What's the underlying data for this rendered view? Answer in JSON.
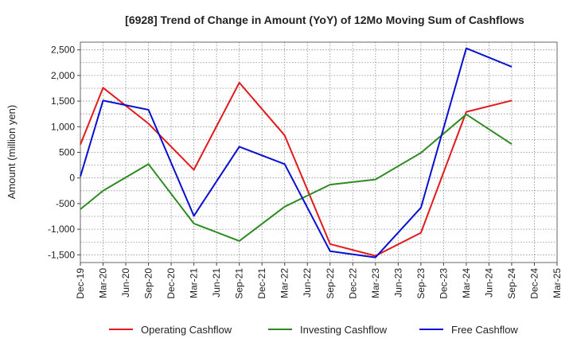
{
  "chart_data": {
    "type": "line",
    "title": "[6928]  Trend of Change in Amount (YoY) of 12Mo Moving Sum of Cashflows",
    "ylabel": "Amount (million yen)",
    "xlabel": "",
    "ylim": [
      -1650,
      2650
    ],
    "yticks": [
      -1500,
      -1000,
      -500,
      0,
      500,
      1000,
      1500,
      2000,
      2500
    ],
    "ytick_labels": [
      "-1,500",
      "-1,000",
      "-500",
      "0",
      "500",
      "1,000",
      "1,500",
      "2,000",
      "2,500"
    ],
    "categories": [
      "Dec-19",
      "Mar-20",
      "Jun-20",
      "Sep-20",
      "Dec-20",
      "Mar-21",
      "Jun-21",
      "Sep-21",
      "Dec-21",
      "Mar-22",
      "Jun-22",
      "Sep-22",
      "Dec-22",
      "Mar-23",
      "Jun-23",
      "Sep-23",
      "Dec-23",
      "Mar-24",
      "Jun-24",
      "Sep-24",
      "Dec-24",
      "Mar-25"
    ],
    "grid": true,
    "legend_position": "bottom",
    "series": [
      {
        "name": "Operating Cashflow",
        "color": "#e31a1c",
        "points": [
          [
            0,
            650
          ],
          [
            1,
            1760
          ],
          [
            3,
            1060
          ],
          [
            5,
            160
          ],
          [
            7,
            1860
          ],
          [
            9,
            830
          ],
          [
            11,
            -1290
          ],
          [
            13,
            -1520
          ],
          [
            15,
            -1070
          ],
          [
            17,
            1290
          ],
          [
            19,
            1510
          ]
        ]
      },
      {
        "name": "Investing Cashflow",
        "color": "#2e8b22",
        "points": [
          [
            0,
            -610
          ],
          [
            1,
            -250
          ],
          [
            3,
            270
          ],
          [
            5,
            -890
          ],
          [
            7,
            -1230
          ],
          [
            9,
            -560
          ],
          [
            11,
            -130
          ],
          [
            13,
            -30
          ],
          [
            15,
            490
          ],
          [
            17,
            1240
          ],
          [
            19,
            660
          ]
        ]
      },
      {
        "name": "Free Cashflow",
        "color": "#0a10d0",
        "points": [
          [
            0,
            30
          ],
          [
            1,
            1510
          ],
          [
            3,
            1330
          ],
          [
            5,
            -740
          ],
          [
            7,
            610
          ],
          [
            9,
            270
          ],
          [
            11,
            -1430
          ],
          [
            13,
            -1550
          ],
          [
            15,
            -580
          ],
          [
            17,
            2530
          ],
          [
            19,
            2170
          ]
        ]
      }
    ]
  }
}
